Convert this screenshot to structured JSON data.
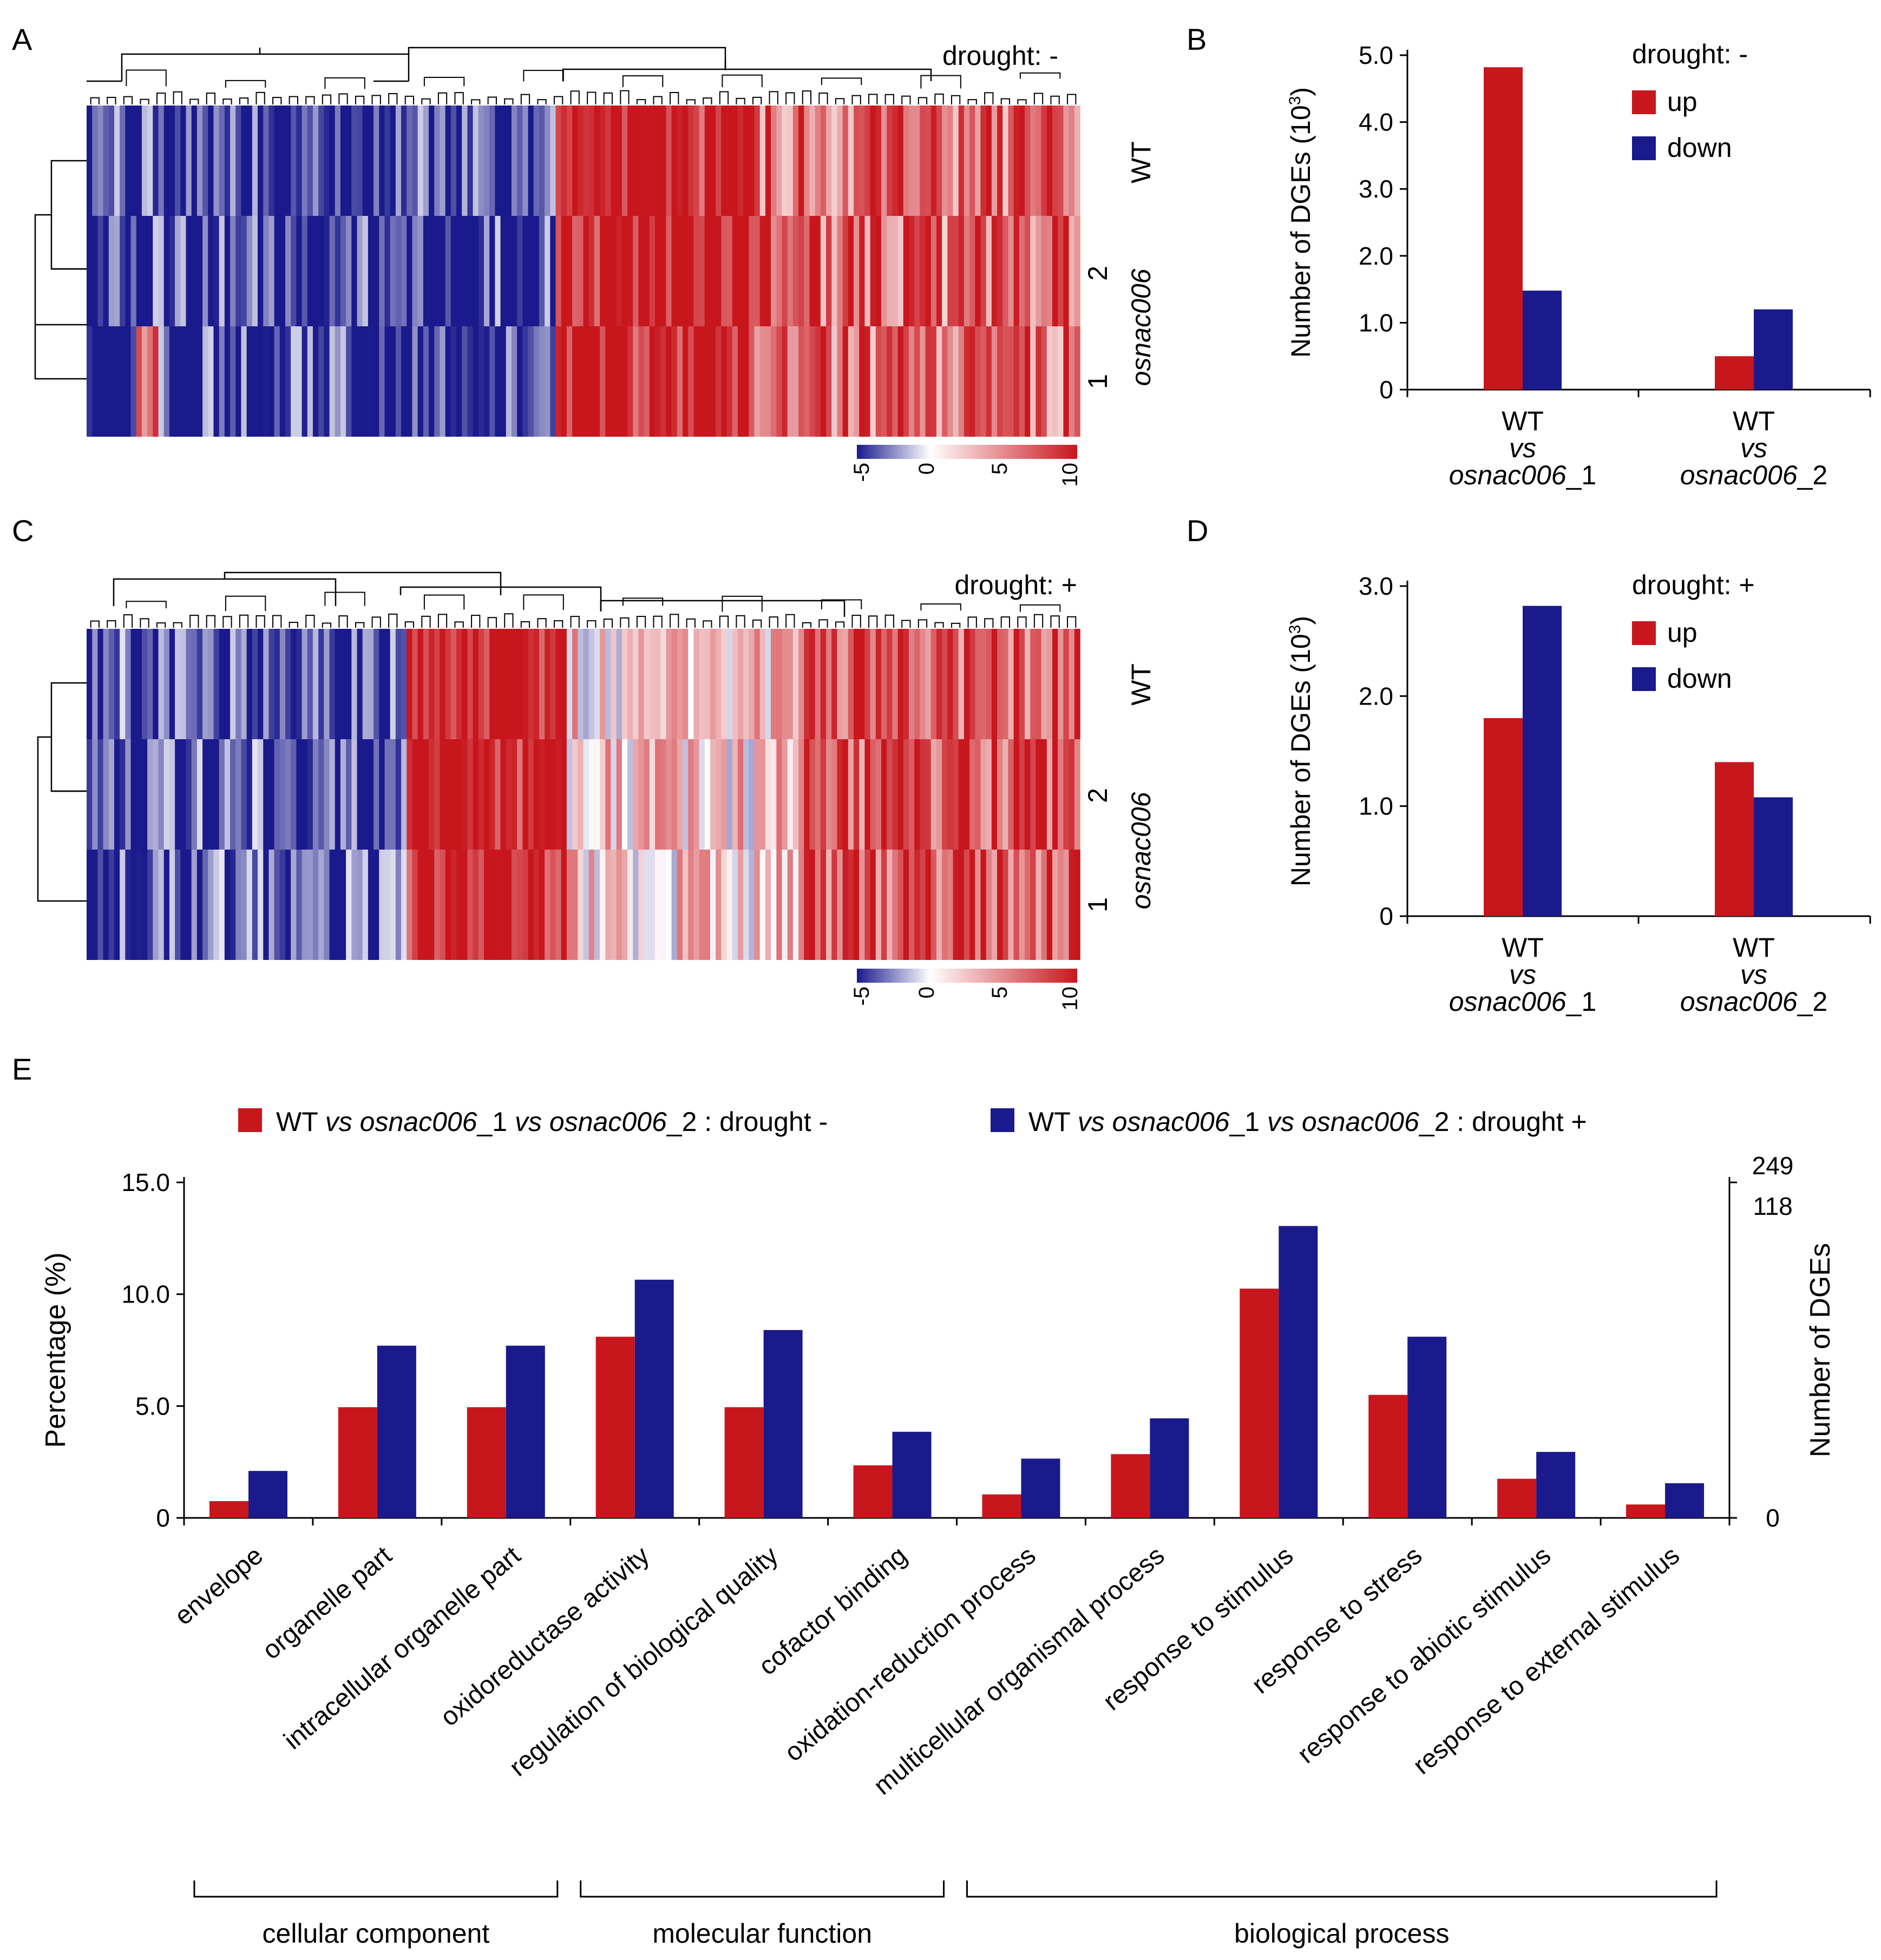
{
  "colors": {
    "red": "#c8161d",
    "blue": "#1a1a8c",
    "white": "#ffffff",
    "black": "#000000"
  },
  "panels": {
    "a": {
      "letter": "A",
      "condition": "drought: -"
    },
    "b": {
      "letter": "B"
    },
    "c": {
      "letter": "C",
      "condition": "drought: +"
    },
    "d": {
      "letter": "D"
    },
    "e": {
      "letter": "E"
    }
  },
  "heatmap": {
    "row_labels": [
      "WT",
      "2",
      "1"
    ],
    "genotype_label": "osnac006",
    "colorbar_ticks": [
      "-5",
      "0",
      "5",
      "10"
    ]
  },
  "chart_data": [
    {
      "panel": "A",
      "type": "heatmap",
      "condition": "drought: -",
      "rows": [
        "WT",
        "osnac006 2",
        "osnac006 1"
      ],
      "color_range": [
        -5,
        10
      ],
      "colorbar_ticks": [
        -5,
        0,
        5,
        10
      ]
    },
    {
      "panel": "B",
      "type": "bar",
      "legend_title": "drought: -",
      "ylabel": "Number of DGEs (10³)",
      "ylim": [
        0,
        5.0
      ],
      "yticks": [
        "0",
        "1.0",
        "2.0",
        "3.0",
        "4.0",
        "5.0"
      ],
      "categories": [
        {
          "line1": "WT",
          "line2": "vs",
          "line3": "osnac006",
          "suffix": "_1"
        },
        {
          "line1": "WT",
          "line2": "vs",
          "line3": "osnac006",
          "suffix": "_2"
        }
      ],
      "series": [
        {
          "name": "up",
          "values": [
            4.82,
            0.5
          ]
        },
        {
          "name": "down",
          "values": [
            1.48,
            1.2
          ]
        }
      ]
    },
    {
      "panel": "C",
      "type": "heatmap",
      "condition": "drought: +",
      "rows": [
        "WT",
        "osnac006 2",
        "osnac006 1"
      ],
      "color_range": [
        -5,
        10
      ],
      "colorbar_ticks": [
        -5,
        0,
        5,
        10
      ]
    },
    {
      "panel": "D",
      "type": "bar",
      "legend_title": "drought: +",
      "ylabel": "Number of DGEs (10³)",
      "ylim": [
        0,
        3.0
      ],
      "yticks": [
        "0",
        "1.0",
        "2.0",
        "3.0"
      ],
      "categories": [
        {
          "line1": "WT",
          "line2": "vs",
          "line3": "osnac006",
          "suffix": "_1"
        },
        {
          "line1": "WT",
          "line2": "vs",
          "line3": "osnac006",
          "suffix": "_2"
        }
      ],
      "series": [
        {
          "name": "up",
          "values": [
            1.8,
            1.4
          ]
        },
        {
          "name": "down",
          "values": [
            2.82,
            1.08
          ]
        }
      ]
    },
    {
      "panel": "E",
      "type": "bar",
      "ylabel": "Percentage (%)",
      "y2label": "Number of DGEs",
      "ylim": [
        0,
        15.0
      ],
      "yticks": [
        "0",
        "5.0",
        "10.0",
        "15.0"
      ],
      "y2_top": [
        {
          "value": "249",
          "color": "#c8161d"
        },
        {
          "value": "118",
          "color": "#1a1a8c"
        }
      ],
      "y2_bottom": "0",
      "legend": [
        {
          "wt": "WT",
          "vs": "vs",
          "g1": "osnac006",
          "s1": "_1",
          "vs2": "vs",
          "g2": "osnac006",
          "s2": "_2",
          "cond": " : drought -"
        },
        {
          "wt": "WT",
          "vs": "vs",
          "g1": "osnac006",
          "s1": "_1",
          "vs2": "vs",
          "g2": "osnac006",
          "s2": "_2",
          "cond": " : drought +"
        }
      ],
      "categories": [
        "envelope",
        "organelle part",
        "intracellular organelle part",
        "oxidoreductase activity",
        "regulation of biological quality",
        "cofactor binding",
        "oxidation-reduction process",
        "multicellular organismal process",
        "response to stimulus",
        "response to stress",
        "response to abiotic stimulus",
        "response to external stimulus"
      ],
      "series": [
        {
          "name": "drought -",
          "values": [
            0.75,
            4.95,
            4.95,
            8.1,
            4.95,
            2.35,
            1.05,
            2.85,
            10.25,
            5.5,
            1.75,
            0.6
          ]
        },
        {
          "name": "drought +",
          "values": [
            2.1,
            7.7,
            7.7,
            10.65,
            8.4,
            3.85,
            2.65,
            4.45,
            13.05,
            8.1,
            2.95,
            1.55
          ]
        }
      ],
      "groups": [
        {
          "label": "cellular component",
          "from": 0,
          "to": 2
        },
        {
          "label": "molecular function",
          "from": 3,
          "to": 5
        },
        {
          "label": "biological process",
          "from": 6,
          "to": 11
        }
      ]
    }
  ]
}
